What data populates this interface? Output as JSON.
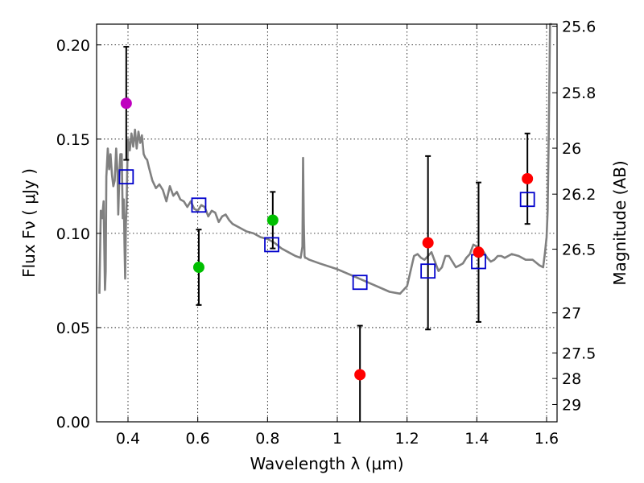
{
  "chart_data": {
    "type": "scatter",
    "xlabel": "Wavelength  λ (μm)",
    "ylabel": "Flux  Fν  ( μJy )",
    "y2label": "Magnitude (AB)",
    "xlim": [
      0.31,
      1.63
    ],
    "ylim": [
      0.0,
      0.211
    ],
    "grid": true,
    "x_ticks": [
      0.4,
      0.6,
      0.8,
      1.0,
      1.2,
      1.4,
      1.6
    ],
    "x_tick_labels": [
      "0.4",
      "0.6",
      "0.8",
      "1",
      "1.2",
      "1.4",
      "1.6"
    ],
    "y_ticks": [
      0.0,
      0.05,
      0.1,
      0.15,
      0.2
    ],
    "y_tick_labels": [
      "0.00",
      "0.05",
      "0.10",
      "0.15",
      "0.20"
    ],
    "y2_ticks": [
      {
        "label": "25.6",
        "flux": 0.2099
      },
      {
        "label": "25.8",
        "flux": 0.1746
      },
      {
        "label": "26",
        "flux": 0.1452
      },
      {
        "label": "26.2",
        "flux": 0.1208
      },
      {
        "label": "26.5",
        "flux": 0.0916
      },
      {
        "label": "27",
        "flux": 0.0578
      },
      {
        "label": "27.5",
        "flux": 0.0365
      },
      {
        "label": "28",
        "flux": 0.023
      },
      {
        "label": "29",
        "flux": 0.0092
      }
    ],
    "observed": [
      {
        "x": 0.395,
        "y": 0.169,
        "err": 0.03,
        "color": "#bf00bf"
      },
      {
        "x": 0.603,
        "y": 0.082,
        "err": 0.02,
        "color": "#00bf00"
      },
      {
        "x": 0.815,
        "y": 0.107,
        "err": 0.015,
        "color": "#00bf00"
      },
      {
        "x": 1.065,
        "y": 0.025,
        "err": 0.026,
        "color": "#ff0000"
      },
      {
        "x": 1.26,
        "y": 0.095,
        "err": 0.046,
        "color": "#ff0000"
      },
      {
        "x": 1.405,
        "y": 0.09,
        "err": 0.037,
        "color": "#ff0000"
      },
      {
        "x": 1.545,
        "y": 0.129,
        "err": 0.024,
        "color": "#ff0000"
      }
    ],
    "model_points": [
      {
        "x": 0.395,
        "y": 0.13
      },
      {
        "x": 0.603,
        "y": 0.115
      },
      {
        "x": 0.812,
        "y": 0.094
      },
      {
        "x": 1.065,
        "y": 0.074
      },
      {
        "x": 1.26,
        "y": 0.08
      },
      {
        "x": 1.405,
        "y": 0.085
      },
      {
        "x": 1.545,
        "y": 0.118
      }
    ],
    "model_spectrum": {
      "color": "#808080",
      "x": [
        0.318,
        0.322,
        0.326,
        0.33,
        0.334,
        0.336,
        0.338,
        0.342,
        0.346,
        0.35,
        0.354,
        0.358,
        0.362,
        0.366,
        0.37,
        0.372,
        0.375,
        0.378,
        0.382,
        0.385,
        0.388,
        0.39,
        0.392,
        0.394,
        0.396,
        0.398,
        0.4,
        0.405,
        0.41,
        0.415,
        0.42,
        0.425,
        0.43,
        0.435,
        0.44,
        0.445,
        0.45,
        0.455,
        0.46,
        0.47,
        0.48,
        0.49,
        0.5,
        0.51,
        0.52,
        0.53,
        0.54,
        0.55,
        0.56,
        0.57,
        0.58,
        0.59,
        0.6,
        0.61,
        0.62,
        0.63,
        0.64,
        0.65,
        0.66,
        0.67,
        0.68,
        0.69,
        0.7,
        0.72,
        0.74,
        0.76,
        0.78,
        0.8,
        0.82,
        0.84,
        0.86,
        0.88,
        0.895,
        0.9,
        0.902,
        0.904,
        0.906,
        0.908,
        0.91,
        0.92,
        0.95,
        1.0,
        1.05,
        1.1,
        1.15,
        1.18,
        1.2,
        1.21,
        1.22,
        1.23,
        1.24,
        1.25,
        1.26,
        1.27,
        1.28,
        1.29,
        1.3,
        1.31,
        1.32,
        1.33,
        1.34,
        1.35,
        1.36,
        1.37,
        1.38,
        1.39,
        1.4,
        1.41,
        1.42,
        1.43,
        1.44,
        1.45,
        1.46,
        1.47,
        1.48,
        1.5,
        1.52,
        1.54,
        1.56,
        1.58,
        1.59,
        1.595,
        1.6,
        1.603,
        1.606,
        1.61,
        1.615
      ],
      "y": [
        0.068,
        0.112,
        0.108,
        0.117,
        0.07,
        0.08,
        0.13,
        0.145,
        0.134,
        0.142,
        0.131,
        0.125,
        0.128,
        0.145,
        0.132,
        0.11,
        0.13,
        0.142,
        0.142,
        0.108,
        0.118,
        0.093,
        0.076,
        0.105,
        0.115,
        0.135,
        0.15,
        0.144,
        0.153,
        0.146,
        0.155,
        0.145,
        0.154,
        0.148,
        0.152,
        0.142,
        0.14,
        0.139,
        0.135,
        0.128,
        0.124,
        0.126,
        0.123,
        0.117,
        0.125,
        0.12,
        0.122,
        0.118,
        0.117,
        0.114,
        0.117,
        0.113,
        0.112,
        0.115,
        0.114,
        0.109,
        0.112,
        0.111,
        0.106,
        0.109,
        0.11,
        0.107,
        0.105,
        0.103,
        0.101,
        0.1,
        0.098,
        0.097,
        0.095,
        0.092,
        0.09,
        0.088,
        0.087,
        0.093,
        0.14,
        0.105,
        0.088,
        0.087,
        0.087,
        0.086,
        0.084,
        0.081,
        0.077,
        0.073,
        0.069,
        0.068,
        0.072,
        0.08,
        0.088,
        0.089,
        0.087,
        0.086,
        0.088,
        0.09,
        0.085,
        0.08,
        0.082,
        0.088,
        0.088,
        0.085,
        0.082,
        0.083,
        0.084,
        0.087,
        0.089,
        0.094,
        0.093,
        0.092,
        0.09,
        0.087,
        0.085,
        0.086,
        0.088,
        0.088,
        0.087,
        0.089,
        0.088,
        0.086,
        0.086,
        0.083,
        0.082,
        0.089,
        0.098,
        0.112,
        0.15,
        0.211,
        0.211
      ]
    }
  }
}
